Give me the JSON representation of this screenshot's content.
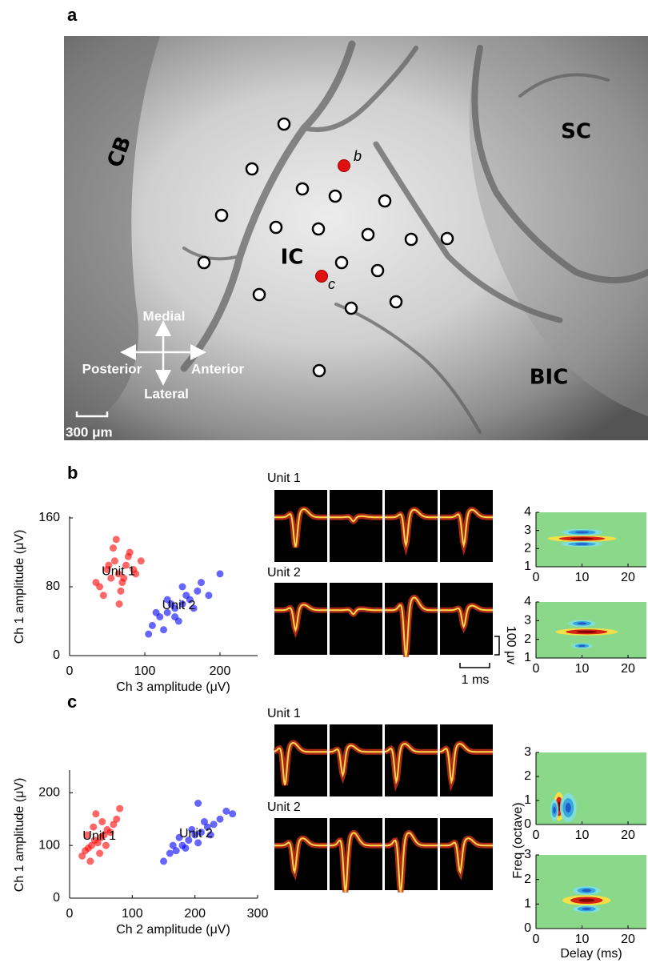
{
  "figure": {
    "panel_a": {
      "label": "a",
      "regions": [
        "CB",
        "SC",
        "IC",
        "BIC"
      ],
      "sites": [
        "b",
        "c"
      ],
      "directions": [
        "Medial",
        "Posterior",
        "Anterior",
        "Lateral"
      ],
      "scale_bar": "300 μm"
    },
    "panel_b": {
      "label": "b",
      "waveform_titles": [
        "Unit 1",
        "Unit 2"
      ],
      "voltage_scale": "100 μv",
      "time_scale": "1 ms"
    },
    "panel_c": {
      "label": "c",
      "waveform_titles": [
        "Unit 1",
        "Unit 2"
      ]
    }
  },
  "chart_data": [
    {
      "type": "scatter",
      "xlabel": "Ch 3 amplitude (μV)",
      "ylabel": "Ch 1 amplitude (μV)",
      "xlim": [
        0,
        250
      ],
      "ylim": [
        0,
        160
      ],
      "xticks": [
        0,
        100,
        200
      ],
      "yticks": [
        0,
        80,
        160
      ],
      "series": [
        {
          "name": "Unit 1",
          "color": "#ff0000",
          "x": [
            40,
            50,
            55,
            60,
            65,
            70,
            75,
            80,
            85,
            45,
            58,
            68,
            78,
            88,
            52,
            62,
            72,
            95,
            35,
            66
          ],
          "y": [
            80,
            100,
            90,
            110,
            95,
            85,
            105,
            120,
            100,
            70,
            125,
            75,
            115,
            95,
            105,
            135,
            90,
            110,
            85,
            60
          ]
        },
        {
          "name": "Unit 2",
          "color": "#0000ff",
          "x": [
            110,
            120,
            130,
            140,
            150,
            160,
            170,
            125,
            135,
            145,
            155,
            165,
            115,
            175,
            140,
            150,
            185,
            130,
            200,
            105
          ],
          "y": [
            35,
            45,
            50,
            55,
            60,
            65,
            75,
            30,
            60,
            40,
            70,
            55,
            50,
            85,
            45,
            80,
            70,
            65,
            95,
            25
          ]
        }
      ]
    },
    {
      "type": "scatter",
      "xlabel": "Ch 2 amplitude (μV)",
      "ylabel": "Ch 1 amplitude (μV)",
      "xlim": [
        0,
        300
      ],
      "ylim": [
        0,
        240
      ],
      "xticks": [
        0,
        100,
        200,
        300
      ],
      "yticks": [
        0,
        100,
        200
      ],
      "series": [
        {
          "name": "Unit 1",
          "color": "#ff0000",
          "x": [
            20,
            30,
            35,
            40,
            45,
            50,
            55,
            60,
            65,
            70,
            25,
            38,
            48,
            58,
            75,
            33,
            42,
            52,
            80,
            28
          ],
          "y": [
            80,
            95,
            100,
            110,
            105,
            115,
            120,
            130,
            125,
            140,
            90,
            135,
            85,
            100,
            150,
            70,
            160,
            145,
            170,
            120
          ]
        },
        {
          "name": "Unit 2",
          "color": "#0000ff",
          "x": [
            160,
            170,
            180,
            190,
            200,
            210,
            220,
            230,
            240,
            175,
            185,
            195,
            205,
            215,
            250,
            165,
            225,
            260,
            150,
            205
          ],
          "y": [
            85,
            90,
            100,
            110,
            120,
            125,
            135,
            140,
            150,
            115,
            95,
            130,
            105,
            145,
            165,
            100,
            120,
            160,
            70,
            180
          ]
        }
      ]
    },
    {
      "type": "heatmap",
      "xlim": [
        0,
        24
      ],
      "ylim": [
        1,
        4
      ],
      "xticks": [
        0,
        10,
        20
      ],
      "yticks": [
        1,
        2,
        3,
        4
      ]
    },
    {
      "type": "heatmap",
      "xlim": [
        0,
        24
      ],
      "ylim": [
        1,
        4
      ],
      "xticks": [
        0,
        10,
        20
      ],
      "yticks": [
        1,
        2,
        3,
        4
      ]
    },
    {
      "type": "heatmap",
      "xlim": [
        0,
        24
      ],
      "ylim": [
        0,
        3
      ],
      "xticks": [
        0,
        10,
        20
      ],
      "yticks": [
        0,
        1,
        2,
        3
      ]
    },
    {
      "type": "heatmap",
      "xlabel": "Delay (ms)",
      "ylabel": "Freq (octave)",
      "xlim": [
        0,
        24
      ],
      "ylim": [
        0,
        3
      ],
      "xticks": [
        0,
        10,
        20
      ],
      "yticks": [
        0,
        1,
        2,
        3
      ]
    }
  ]
}
